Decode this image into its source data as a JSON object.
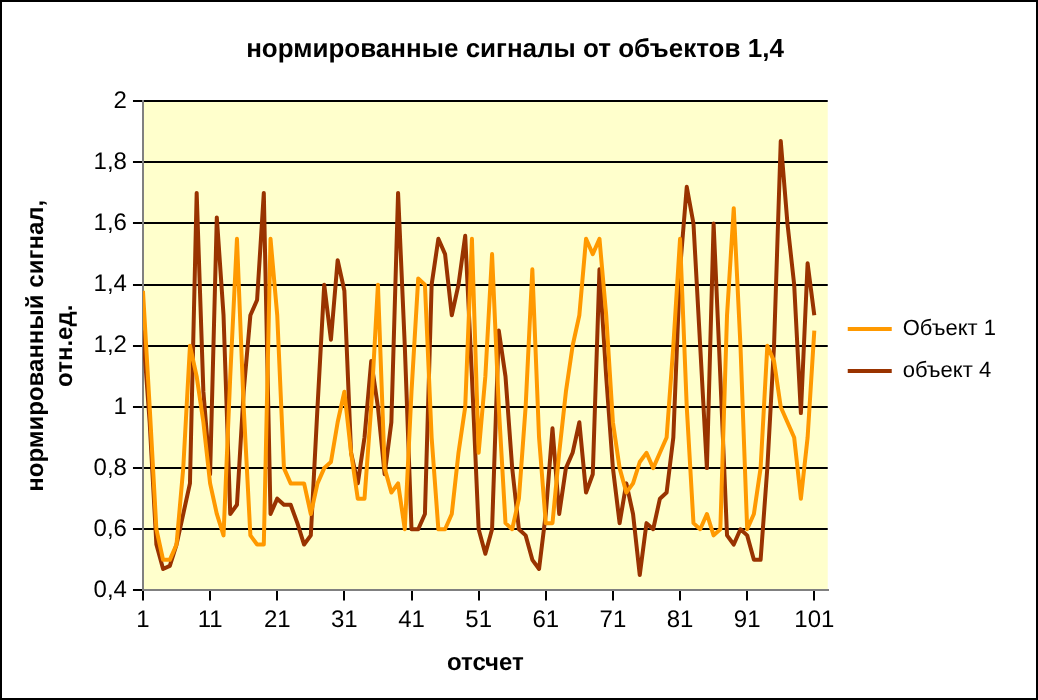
{
  "chart_data": {
    "type": "line",
    "title": "нормированные сигналы от объектов 1,4",
    "xlabel": "отсчет",
    "ylabel": "нормированный сигнал, отн.ед.",
    "x": [
      1,
      2,
      3,
      4,
      5,
      6,
      7,
      8,
      9,
      10,
      11,
      12,
      13,
      14,
      15,
      16,
      17,
      18,
      19,
      20,
      21,
      22,
      23,
      24,
      25,
      26,
      27,
      28,
      29,
      30,
      31,
      32,
      33,
      34,
      35,
      36,
      37,
      38,
      39,
      40,
      41,
      42,
      43,
      44,
      45,
      46,
      47,
      48,
      49,
      50,
      51,
      52,
      53,
      54,
      55,
      56,
      57,
      58,
      59,
      60,
      61,
      62,
      63,
      64,
      65,
      66,
      67,
      68,
      69,
      70,
      71,
      72,
      73,
      74,
      75,
      76,
      77,
      78,
      79,
      80,
      81,
      82,
      83,
      84,
      85,
      86,
      87,
      88,
      89,
      90,
      91,
      92,
      93,
      94,
      95,
      96,
      97,
      98,
      99,
      100,
      101
    ],
    "series": [
      {
        "name": "Объект 1",
        "color": "#ff9900",
        "values": [
          1.38,
          1.0,
          0.6,
          0.5,
          0.5,
          0.55,
          0.8,
          1.2,
          1.1,
          0.95,
          0.75,
          0.65,
          0.58,
          1.1,
          1.55,
          1.0,
          0.58,
          0.55,
          0.55,
          1.55,
          1.3,
          0.8,
          0.75,
          0.75,
          0.75,
          0.65,
          0.75,
          0.8,
          0.82,
          0.95,
          1.05,
          0.85,
          0.7,
          0.7,
          1.0,
          1.4,
          0.8,
          0.72,
          0.75,
          0.6,
          1.05,
          1.42,
          1.4,
          0.9,
          0.6,
          0.6,
          0.65,
          0.85,
          1.0,
          1.55,
          0.85,
          1.1,
          1.5,
          1.0,
          0.62,
          0.6,
          0.7,
          1.0,
          1.45,
          0.9,
          0.62,
          0.62,
          0.85,
          1.05,
          1.2,
          1.3,
          1.55,
          1.5,
          1.55,
          1.3,
          0.95,
          0.8,
          0.72,
          0.75,
          0.82,
          0.85,
          0.8,
          0.85,
          0.9,
          1.2,
          1.55,
          1.0,
          0.62,
          0.6,
          0.65,
          0.58,
          0.6,
          1.3,
          1.65,
          1.2,
          0.6,
          0.65,
          0.8,
          1.2,
          1.15,
          1.0,
          0.95,
          0.9,
          0.7,
          0.9,
          1.25
        ]
      },
      {
        "name": "объект 4",
        "color": "#993300",
        "values": [
          1.25,
          0.95,
          0.55,
          0.47,
          0.48,
          0.55,
          0.65,
          0.75,
          1.7,
          1.05,
          0.78,
          1.62,
          1.3,
          0.65,
          0.68,
          1.05,
          1.3,
          1.35,
          1.7,
          0.65,
          0.7,
          0.68,
          0.68,
          0.62,
          0.55,
          0.58,
          1.0,
          1.4,
          1.22,
          1.48,
          1.38,
          0.85,
          0.75,
          0.9,
          1.15,
          1.0,
          0.78,
          0.95,
          1.7,
          1.2,
          0.6,
          0.6,
          0.65,
          1.4,
          1.55,
          1.5,
          1.3,
          1.4,
          1.56,
          1.1,
          0.6,
          0.52,
          0.6,
          1.25,
          1.1,
          0.8,
          0.6,
          0.58,
          0.5,
          0.47,
          0.65,
          0.93,
          0.65,
          0.8,
          0.85,
          0.95,
          0.72,
          0.78,
          1.45,
          1.1,
          0.8,
          0.62,
          0.75,
          0.65,
          0.45,
          0.62,
          0.6,
          0.7,
          0.72,
          0.9,
          1.45,
          1.72,
          1.6,
          1.2,
          0.8,
          1.6,
          1.1,
          0.58,
          0.55,
          0.6,
          0.58,
          0.5,
          0.5,
          0.8,
          1.2,
          1.87,
          1.6,
          1.4,
          0.98,
          1.47,
          1.3
        ]
      }
    ],
    "xlim": [
      1,
      103
    ],
    "xticks": [
      1,
      11,
      21,
      31,
      41,
      51,
      61,
      71,
      81,
      91,
      101
    ],
    "ylim": [
      0.4,
      2
    ],
    "yticks": [
      {
        "value": 0.4,
        "label": "0,4"
      },
      {
        "value": 0.6,
        "label": "0,6"
      },
      {
        "value": 0.8,
        "label": "0,8"
      },
      {
        "value": 1,
        "label": "1"
      },
      {
        "value": 1.2,
        "label": "1,2"
      },
      {
        "value": 1.4,
        "label": "1,4"
      },
      {
        "value": 1.6,
        "label": "1,6"
      },
      {
        "value": 1.8,
        "label": "1,8"
      },
      {
        "value": 2,
        "label": "2"
      }
    ],
    "grid": "y",
    "legend": "right",
    "marker": "none",
    "line_style": "solid"
  }
}
